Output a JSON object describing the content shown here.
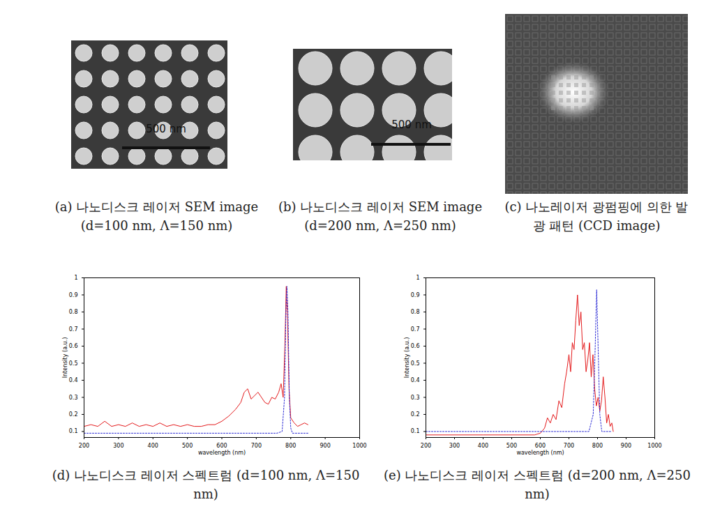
{
  "panels": [
    {
      "caption": "(a) 나노디스크 레이저 SEM image (d=100 nm, Λ=150 nm)",
      "scale_bar": "500 nm"
    },
    {
      "caption": "(b) 나노디스크 레이저 SEM image (d=200 nm, Λ=250 nm)",
      "scale_bar": "500 nm"
    },
    {
      "caption": "(c) 나노레이저 광펌핑에 의한 발광 패턴 (CCD image)"
    }
  ],
  "chart_data": [
    {
      "type": "line",
      "title": "(d) 나노디스크 레이저 스펙트럼 (d=100 nm, Λ=150 nm)",
      "x_label": "wavelength (nm)",
      "y_label": "Intensity (a.u.)",
      "xlim": [
        200,
        1000
      ],
      "xticks": [
        200,
        300,
        400,
        500,
        600,
        700,
        800,
        900,
        1000
      ],
      "ylim": [
        0.065,
        1
      ],
      "yticks": [
        0.1,
        0.2,
        0.3,
        0.4,
        0.5,
        0.6,
        0.7,
        0.8,
        0.9,
        1
      ],
      "grid": false,
      "series": [
        {
          "color": "#e41a1c",
          "line_style": "solid",
          "x": [
            200,
            220,
            240,
            260,
            280,
            300,
            320,
            340,
            360,
            380,
            400,
            420,
            440,
            460,
            480,
            500,
            520,
            540,
            560,
            580,
            600,
            620,
            640,
            655,
            665,
            675,
            685,
            695,
            705,
            715,
            725,
            735,
            745,
            755,
            765,
            772,
            778,
            783,
            787,
            791,
            795,
            800,
            810,
            820,
            830,
            840,
            850
          ],
          "values": [
            0.13,
            0.14,
            0.13,
            0.16,
            0.13,
            0.14,
            0.13,
            0.15,
            0.13,
            0.14,
            0.13,
            0.15,
            0.13,
            0.14,
            0.13,
            0.14,
            0.13,
            0.13,
            0.14,
            0.14,
            0.16,
            0.19,
            0.23,
            0.27,
            0.33,
            0.35,
            0.29,
            0.31,
            0.33,
            0.3,
            0.27,
            0.26,
            0.3,
            0.29,
            0.33,
            0.38,
            0.3,
            0.6,
            0.95,
            0.75,
            0.35,
            0.18,
            0.15,
            0.13,
            0.14,
            0.15,
            0.14
          ]
        },
        {
          "color": "#2b2bd6",
          "line_style": "dotted",
          "x": [
            200,
            760,
            775,
            782,
            786,
            789,
            792,
            796,
            800,
            805,
            850
          ],
          "values": [
            0.09,
            0.09,
            0.1,
            0.3,
            0.8,
            0.95,
            0.8,
            0.3,
            0.12,
            0.09,
            0.09
          ]
        }
      ]
    },
    {
      "type": "line",
      "title": "(e) 나노디스크 레이저 스펙트럼 (d=200 nm, Λ=250 nm)",
      "x_label": "wavelength (nm)",
      "y_label": "Intensity (a.u.)",
      "xlim": [
        200,
        1000
      ],
      "xticks": [
        200,
        300,
        400,
        500,
        600,
        700,
        800,
        900,
        1000
      ],
      "ylim": [
        0.065,
        1
      ],
      "yticks": [
        0.1,
        0.2,
        0.3,
        0.4,
        0.5,
        0.6,
        0.7,
        0.8,
        0.9,
        1
      ],
      "grid": false,
      "series": [
        {
          "color": "#e41a1c",
          "line_style": "solid",
          "x": [
            200,
            400,
            580,
            600,
            615,
            625,
            635,
            645,
            655,
            665,
            675,
            685,
            692,
            700,
            706,
            712,
            718,
            724,
            730,
            736,
            742,
            748,
            754,
            760,
            766,
            772,
            778,
            784,
            790,
            796,
            802,
            808,
            814,
            820,
            826,
            832,
            838,
            844,
            850,
            855
          ],
          "values": [
            0.08,
            0.08,
            0.08,
            0.09,
            0.12,
            0.18,
            0.15,
            0.2,
            0.17,
            0.28,
            0.24,
            0.38,
            0.45,
            0.55,
            0.45,
            0.62,
            0.58,
            0.75,
            0.9,
            0.72,
            0.8,
            0.58,
            0.62,
            0.45,
            0.52,
            0.62,
            0.42,
            0.55,
            0.35,
            0.25,
            0.3,
            0.22,
            0.28,
            0.42,
            0.3,
            0.15,
            0.2,
            0.13,
            0.15,
            0.1
          ]
        },
        {
          "color": "#2b2bd6",
          "line_style": "dotted",
          "x": [
            200,
            770,
            785,
            792,
            797,
            802,
            808,
            815,
            850
          ],
          "values": [
            0.1,
            0.1,
            0.2,
            0.6,
            0.93,
            0.6,
            0.2,
            0.1,
            0.1
          ]
        }
      ]
    }
  ]
}
